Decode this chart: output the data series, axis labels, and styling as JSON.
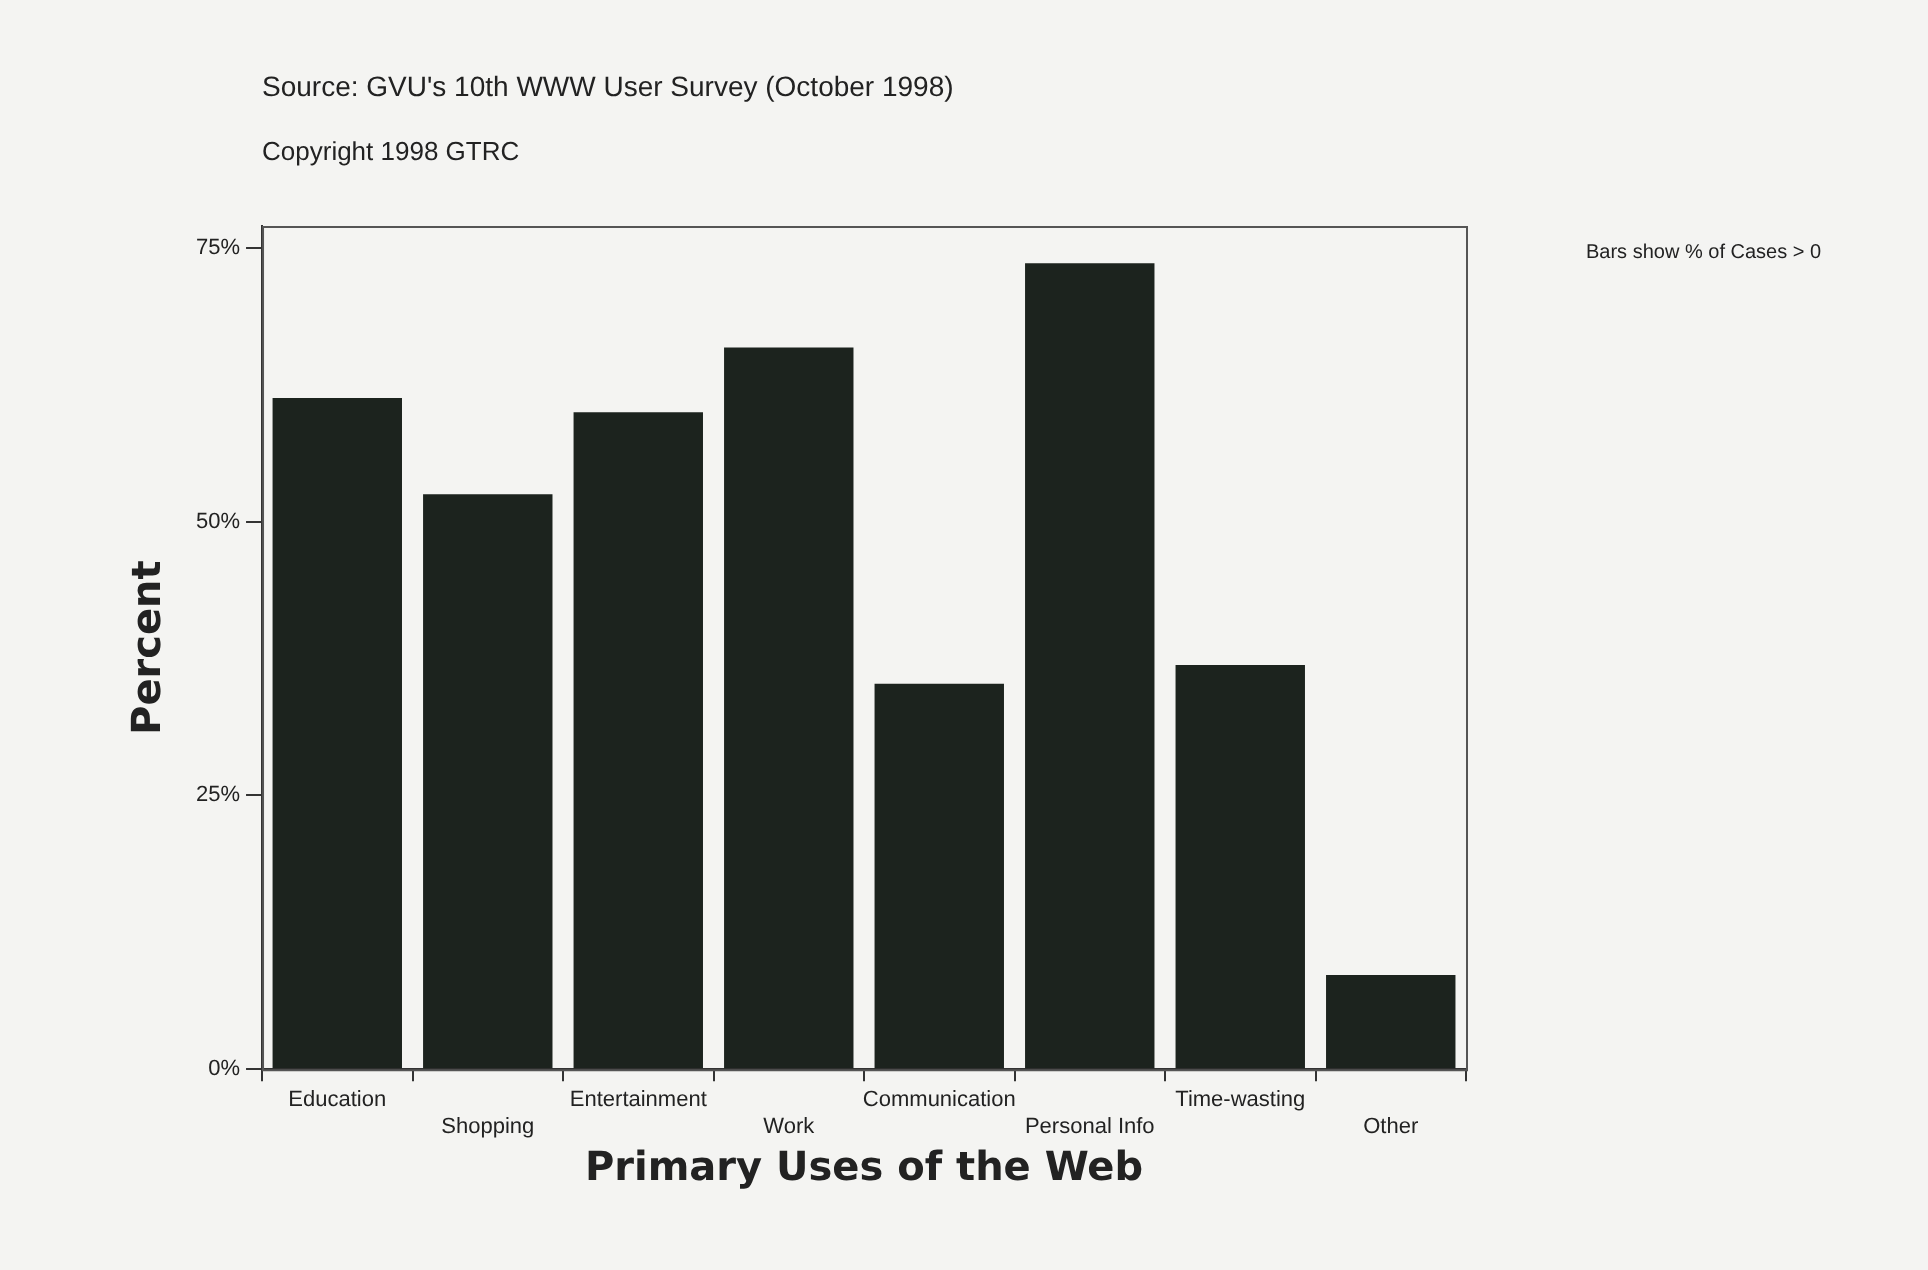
{
  "chart_data": {
    "type": "bar",
    "title": "Source: GVU's 10th WWW User Survey (October 1998)",
    "subtitle": "Copyright 1998 GTRC",
    "annotations": [
      "Bars show % of Cases > 0"
    ],
    "xlabel": "Primary Uses of the Web",
    "ylabel": "Percent",
    "categories": [
      "Education",
      "Shopping",
      "Entertainment",
      "Work",
      "Communication",
      "Personal Info",
      "Time-wasting",
      "Other"
    ],
    "values": [
      61.3,
      52.5,
      60.0,
      65.9,
      35.2,
      73.6,
      36.9,
      8.6
    ],
    "color": "#1c231e",
    "ylim": [
      0,
      77
    ],
    "yticks": [
      {
        "value": 0,
        "label": "0%"
      },
      {
        "value": 25,
        "label": "25%"
      },
      {
        "value": 50,
        "label": "50%"
      },
      {
        "value": 75,
        "label": "75%"
      }
    ],
    "grid": false,
    "legend": false
  }
}
